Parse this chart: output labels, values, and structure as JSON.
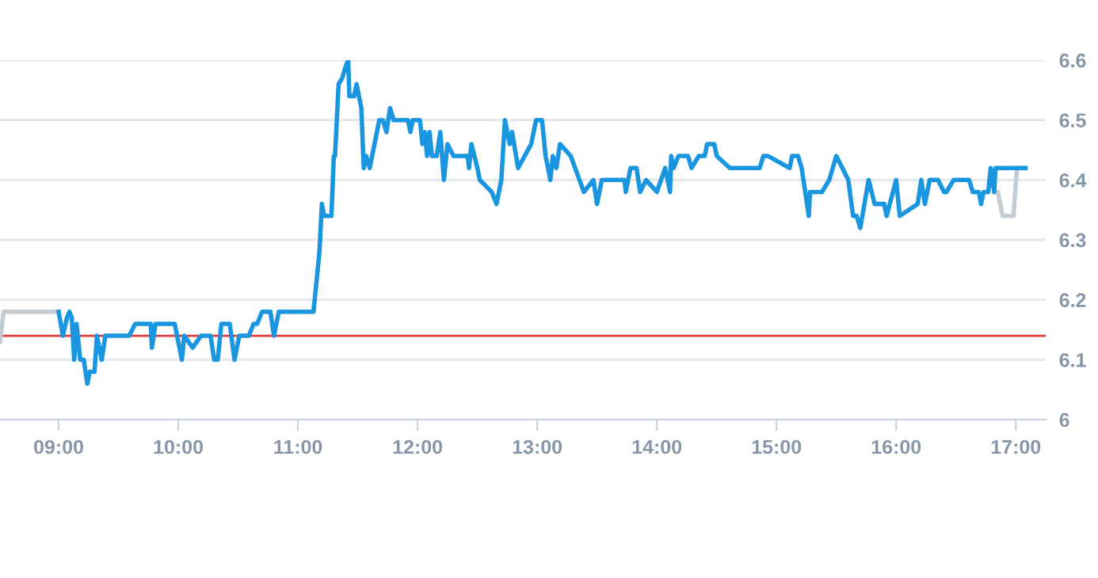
{
  "chart_data": {
    "type": "line",
    "series": [
      {
        "color": "#c4ccd4",
        "x": [
          8.51,
          8.54,
          9.0
        ],
        "values": [
          6.13,
          6.18,
          6.18
        ]
      },
      {
        "color": "#c4ccd4",
        "x": [
          16.82,
          16.85,
          16.89,
          16.98,
          17.01,
          17.08
        ],
        "values": [
          6.38,
          6.38,
          6.34,
          6.34,
          6.42,
          6.42
        ]
      },
      {
        "color": "#1a96e0",
        "x": [
          9.0,
          9.035,
          9.07,
          9.09,
          9.11,
          9.13,
          9.15,
          9.18,
          9.21,
          9.24,
          9.26,
          9.3,
          9.32,
          9.36,
          9.39,
          9.59,
          9.64,
          9.77,
          9.78,
          9.81,
          9.97,
          10.03,
          10.05,
          10.12,
          10.19,
          10.27,
          10.3,
          10.33,
          10.36,
          10.43,
          10.47,
          10.51,
          10.59,
          10.63,
          10.66,
          10.7,
          10.77,
          10.8,
          10.84,
          11.13,
          11.16,
          11.18,
          11.2,
          11.22,
          11.28,
          11.3,
          11.31,
          11.34,
          11.37,
          11.4,
          11.42,
          11.43,
          11.47,
          11.49,
          11.53,
          11.55,
          11.57,
          11.6,
          11.68,
          11.71,
          11.74,
          11.77,
          11.8,
          11.92,
          11.94,
          11.96,
          12.02,
          12.04,
          12.06,
          12.08,
          12.1,
          12.12,
          12.16,
          12.19,
          12.22,
          12.25,
          12.3,
          12.42,
          12.43,
          12.45,
          12.5,
          12.52,
          12.62,
          12.66,
          12.7,
          12.73,
          12.77,
          12.79,
          12.84,
          12.95,
          12.99,
          13.04,
          13.07,
          13.11,
          13.13,
          13.16,
          13.19,
          13.28,
          13.39,
          13.47,
          13.5,
          13.54,
          13.73,
          13.74,
          13.78,
          13.83,
          13.86,
          13.91,
          14.0,
          14.07,
          14.11,
          14.12,
          14.14,
          14.18,
          14.26,
          14.29,
          14.35,
          14.4,
          14.42,
          14.48,
          14.5,
          14.61,
          14.86,
          14.89,
          14.93,
          15.11,
          15.13,
          15.18,
          15.21,
          15.24,
          15.27,
          15.28,
          15.38,
          15.44,
          15.5,
          15.6,
          15.64,
          15.67,
          15.7,
          15.77,
          15.82,
          15.9,
          15.92,
          16.0,
          16.03,
          16.18,
          16.21,
          16.24,
          16.28,
          16.35,
          16.4,
          16.42,
          16.48,
          16.61,
          16.64,
          16.69,
          16.71,
          16.73,
          16.77,
          16.79,
          16.82,
          16.83,
          17.08
        ],
        "values": [
          6.18,
          6.14,
          6.17,
          6.18,
          6.17,
          6.1,
          6.16,
          6.1,
          6.1,
          6.06,
          6.08,
          6.08,
          6.14,
          6.1,
          6.14,
          6.14,
          6.16,
          6.16,
          6.12,
          6.16,
          6.16,
          6.1,
          6.14,
          6.12,
          6.14,
          6.14,
          6.1,
          6.1,
          6.16,
          6.16,
          6.1,
          6.14,
          6.14,
          6.16,
          6.16,
          6.18,
          6.18,
          6.14,
          6.18,
          6.18,
          6.24,
          6.28,
          6.36,
          6.34,
          6.34,
          6.44,
          6.44,
          6.56,
          6.57,
          6.59,
          6.6,
          6.54,
          6.54,
          6.56,
          6.52,
          6.42,
          6.44,
          6.42,
          6.5,
          6.5,
          6.48,
          6.52,
          6.5,
          6.5,
          6.48,
          6.5,
          6.5,
          6.46,
          6.48,
          6.44,
          6.48,
          6.44,
          6.44,
          6.48,
          6.4,
          6.46,
          6.44,
          6.44,
          6.42,
          6.46,
          6.42,
          6.4,
          6.38,
          6.36,
          6.4,
          6.5,
          6.46,
          6.48,
          6.42,
          6.46,
          6.5,
          6.5,
          6.44,
          6.4,
          6.44,
          6.42,
          6.46,
          6.44,
          6.38,
          6.4,
          6.36,
          6.4,
          6.4,
          6.38,
          6.42,
          6.42,
          6.38,
          6.4,
          6.38,
          6.42,
          6.38,
          6.44,
          6.42,
          6.44,
          6.44,
          6.42,
          6.44,
          6.44,
          6.46,
          6.46,
          6.44,
          6.42,
          6.42,
          6.44,
          6.44,
          6.42,
          6.44,
          6.44,
          6.42,
          6.38,
          6.34,
          6.38,
          6.38,
          6.4,
          6.44,
          6.4,
          6.34,
          6.34,
          6.32,
          6.4,
          6.36,
          6.36,
          6.34,
          6.4,
          6.34,
          6.36,
          6.4,
          6.36,
          6.4,
          6.4,
          6.38,
          6.38,
          6.4,
          6.4,
          6.38,
          6.38,
          6.36,
          6.38,
          6.38,
          6.42,
          6.38,
          6.42,
          6.42
        ]
      }
    ],
    "xlim": [
      8.51,
      17.25
    ],
    "xticks": [
      {
        "value": 9,
        "label": "09:00"
      },
      {
        "value": 10,
        "label": "10:00"
      },
      {
        "value": 11,
        "label": "11:00"
      },
      {
        "value": 12,
        "label": "12:00"
      },
      {
        "value": 13,
        "label": "13:00"
      },
      {
        "value": 14,
        "label": "14:00"
      },
      {
        "value": 15,
        "label": "15:00"
      },
      {
        "value": 16,
        "label": "16:00"
      },
      {
        "value": 17,
        "label": "17:00"
      }
    ],
    "ylim": [
      6,
      6.6
    ],
    "yticks": [
      6,
      6.1,
      6.2,
      6.3,
      6.4,
      6.5,
      6.6
    ],
    "grid": "y",
    "ref_lines": [
      {
        "axis": "y",
        "value": 6.14,
        "color": "#e03a3a"
      }
    ],
    "marker": "none",
    "line_style": "solid"
  }
}
